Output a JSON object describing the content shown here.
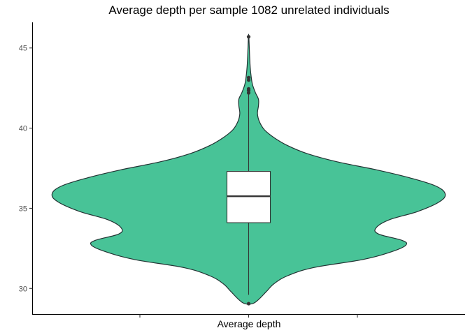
{
  "chart_data": {
    "type": "violin",
    "title": "Average depth per sample 1082 unrelated individuals",
    "xlabel": "Average depth",
    "ylabel": "",
    "categories": [
      ""
    ],
    "ylim": [
      28.4,
      46.6
    ],
    "yticks": [
      30,
      35,
      40,
      45
    ],
    "grid": false,
    "legend": "none",
    "fill_color": "#48c397",
    "outline_color": "#223333",
    "box": {
      "q1": 34.1,
      "median": 35.75,
      "q3": 37.3,
      "whisker_low": 29.6,
      "whisker_high": 42.1
    },
    "outliers": [
      29.05,
      42.2,
      42.35,
      42.45,
      43.0,
      43.15,
      45.7
    ],
    "density": [
      {
        "y": 29.05,
        "w": 0.02
      },
      {
        "y": 29.3,
        "w": 0.05
      },
      {
        "y": 29.8,
        "w": 0.09
      },
      {
        "y": 30.3,
        "w": 0.13
      },
      {
        "y": 30.8,
        "w": 0.2
      },
      {
        "y": 31.3,
        "w": 0.33
      },
      {
        "y": 31.8,
        "w": 0.58
      },
      {
        "y": 32.3,
        "w": 0.73
      },
      {
        "y": 32.7,
        "w": 0.8
      },
      {
        "y": 33.0,
        "w": 0.78
      },
      {
        "y": 33.4,
        "w": 0.66
      },
      {
        "y": 33.8,
        "w": 0.65
      },
      {
        "y": 34.3,
        "w": 0.72
      },
      {
        "y": 34.8,
        "w": 0.86
      },
      {
        "y": 35.4,
        "w": 0.97
      },
      {
        "y": 35.9,
        "w": 1.0
      },
      {
        "y": 36.4,
        "w": 0.95
      },
      {
        "y": 36.9,
        "w": 0.82
      },
      {
        "y": 37.4,
        "w": 0.65
      },
      {
        "y": 37.9,
        "w": 0.45
      },
      {
        "y": 38.4,
        "w": 0.3
      },
      {
        "y": 38.9,
        "w": 0.2
      },
      {
        "y": 39.4,
        "w": 0.13
      },
      {
        "y": 39.9,
        "w": 0.08
      },
      {
        "y": 40.4,
        "w": 0.055
      },
      {
        "y": 40.9,
        "w": 0.045
      },
      {
        "y": 41.4,
        "w": 0.05
      },
      {
        "y": 41.8,
        "w": 0.05
      },
      {
        "y": 42.2,
        "w": 0.035
      },
      {
        "y": 42.7,
        "w": 0.02
      },
      {
        "y": 43.2,
        "w": 0.013
      },
      {
        "y": 43.8,
        "w": 0.008
      },
      {
        "y": 44.5,
        "w": 0.005
      },
      {
        "y": 45.7,
        "w": 0.001
      }
    ]
  }
}
